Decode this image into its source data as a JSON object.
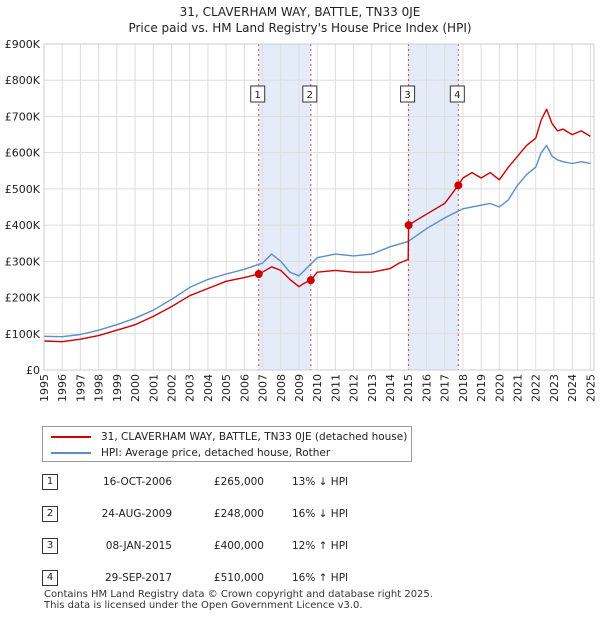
{
  "header": {
    "title": "31, CLAVERHAM WAY, BATTLE, TN33 0JE",
    "subtitle": "Price paid vs. HM Land Registry's House Price Index (HPI)"
  },
  "colors": {
    "property": "#cc0000",
    "hpi": "#5b8ec8",
    "shade": "#dde6f7",
    "grid": "#dddddd",
    "marker_line": "#cc0000"
  },
  "chart_data": {
    "type": "line",
    "title": "31, CLAVERHAM WAY, BATTLE, TN33 0JE",
    "subtitle": "Price paid vs. HM Land Registry's House Price Index (HPI)",
    "xlabel": "",
    "ylabel": "",
    "xlim": [
      1995,
      2025.2
    ],
    "ylim": [
      0,
      900000
    ],
    "x_ticks": [
      1995,
      1996,
      1997,
      1998,
      1999,
      2000,
      2001,
      2002,
      2003,
      2004,
      2005,
      2006,
      2007,
      2008,
      2009,
      2010,
      2011,
      2012,
      2013,
      2014,
      2015,
      2016,
      2017,
      2018,
      2019,
      2020,
      2021,
      2022,
      2023,
      2024,
      2025
    ],
    "y_ticks": [
      {
        "value": 0,
        "label": "£0"
      },
      {
        "value": 100000,
        "label": "£100K"
      },
      {
        "value": 200000,
        "label": "£200K"
      },
      {
        "value": 300000,
        "label": "£300K"
      },
      {
        "value": 400000,
        "label": "£400K"
      },
      {
        "value": 500000,
        "label": "£500K"
      },
      {
        "value": 600000,
        "label": "£600K"
      },
      {
        "value": 700000,
        "label": "£700K"
      },
      {
        "value": 800000,
        "label": "£800K"
      },
      {
        "value": 900000,
        "label": "£900K"
      }
    ],
    "grid": true,
    "shaded_ranges": [
      [
        2006.79,
        2009.65
      ],
      [
        2015.02,
        2017.75
      ]
    ],
    "series": [
      {
        "name": "31, CLAVERHAM WAY, BATTLE, TN33 0JE (detached house)",
        "color": "#cc0000",
        "x": [
          1995,
          1996,
          1997,
          1998,
          1999,
          2000,
          2001,
          2002,
          2003,
          2004,
          2005,
          2006,
          2006.79,
          2007,
          2007.5,
          2008,
          2008.5,
          2009,
          2009.3,
          2009.65,
          2010,
          2011,
          2012,
          2013,
          2014,
          2014.5,
          2015.0,
          2015.02,
          2015.5,
          2016,
          2017,
          2017.75,
          2018,
          2018.5,
          2019,
          2019.5,
          2020,
          2020.5,
          2021,
          2021.5,
          2022,
          2022.3,
          2022.6,
          2022.9,
          2023.2,
          2023.5,
          2024,
          2024.5,
          2025
        ],
        "values": [
          80000,
          78000,
          85000,
          95000,
          110000,
          125000,
          148000,
          175000,
          205000,
          225000,
          245000,
          255000,
          265000,
          270000,
          285000,
          275000,
          250000,
          230000,
          240000,
          248000,
          270000,
          275000,
          270000,
          270000,
          280000,
          295000,
          305000,
          400000,
          415000,
          430000,
          460000,
          510000,
          530000,
          545000,
          530000,
          545000,
          525000,
          560000,
          590000,
          620000,
          640000,
          690000,
          720000,
          680000,
          660000,
          665000,
          650000,
          660000,
          645000
        ]
      },
      {
        "name": "HPI: Average price, detached house, Rother",
        "color": "#5b8ec8",
        "x": [
          1995,
          1996,
          1997,
          1998,
          1999,
          2000,
          2001,
          2002,
          2003,
          2004,
          2005,
          2006,
          2007,
          2007.5,
          2008,
          2008.5,
          2009,
          2009.5,
          2010,
          2011,
          2012,
          2013,
          2014,
          2015,
          2016,
          2017,
          2018,
          2019,
          2019.5,
          2020,
          2020.5,
          2021,
          2021.5,
          2022,
          2022.3,
          2022.6,
          2022.9,
          2023.2,
          2023.5,
          2024,
          2024.5,
          2025
        ],
        "values": [
          93000,
          92000,
          98000,
          110000,
          125000,
          143000,
          165000,
          195000,
          228000,
          250000,
          265000,
          278000,
          295000,
          320000,
          300000,
          270000,
          260000,
          285000,
          310000,
          320000,
          315000,
          320000,
          340000,
          355000,
          390000,
          420000,
          445000,
          455000,
          460000,
          450000,
          470000,
          510000,
          540000,
          560000,
          600000,
          620000,
          590000,
          580000,
          575000,
          570000,
          575000,
          570000
        ]
      }
    ],
    "sales": [
      {
        "id": "1",
        "x": 2006.79,
        "price": 265000
      },
      {
        "id": "2",
        "x": 2009.65,
        "price": 248000
      },
      {
        "id": "3",
        "x": 2015.02,
        "price": 400000
      },
      {
        "id": "4",
        "x": 2017.75,
        "price": 510000
      }
    ]
  },
  "legend": {
    "items": [
      {
        "label": "31, CLAVERHAM WAY, BATTLE, TN33 0JE (detached house)",
        "color": "#cc0000"
      },
      {
        "label": "HPI: Average price, detached house, Rother",
        "color": "#5b8ec8"
      }
    ]
  },
  "sales_table": [
    {
      "num": "1",
      "date": "16-OCT-2006",
      "price": "£265,000",
      "hpi": "13% ↓ HPI"
    },
    {
      "num": "2",
      "date": "24-AUG-2009",
      "price": "£248,000",
      "hpi": "16% ↓ HPI"
    },
    {
      "num": "3",
      "date": "08-JAN-2015",
      "price": "£400,000",
      "hpi": "12% ↑ HPI"
    },
    {
      "num": "4",
      "date": "29-SEP-2017",
      "price": "£510,000",
      "hpi": "16% ↑ HPI"
    }
  ],
  "footer": {
    "line1": "Contains HM Land Registry data © Crown copyright and database right 2025.",
    "line2": "This data is licensed under the Open Government Licence v3.0."
  }
}
